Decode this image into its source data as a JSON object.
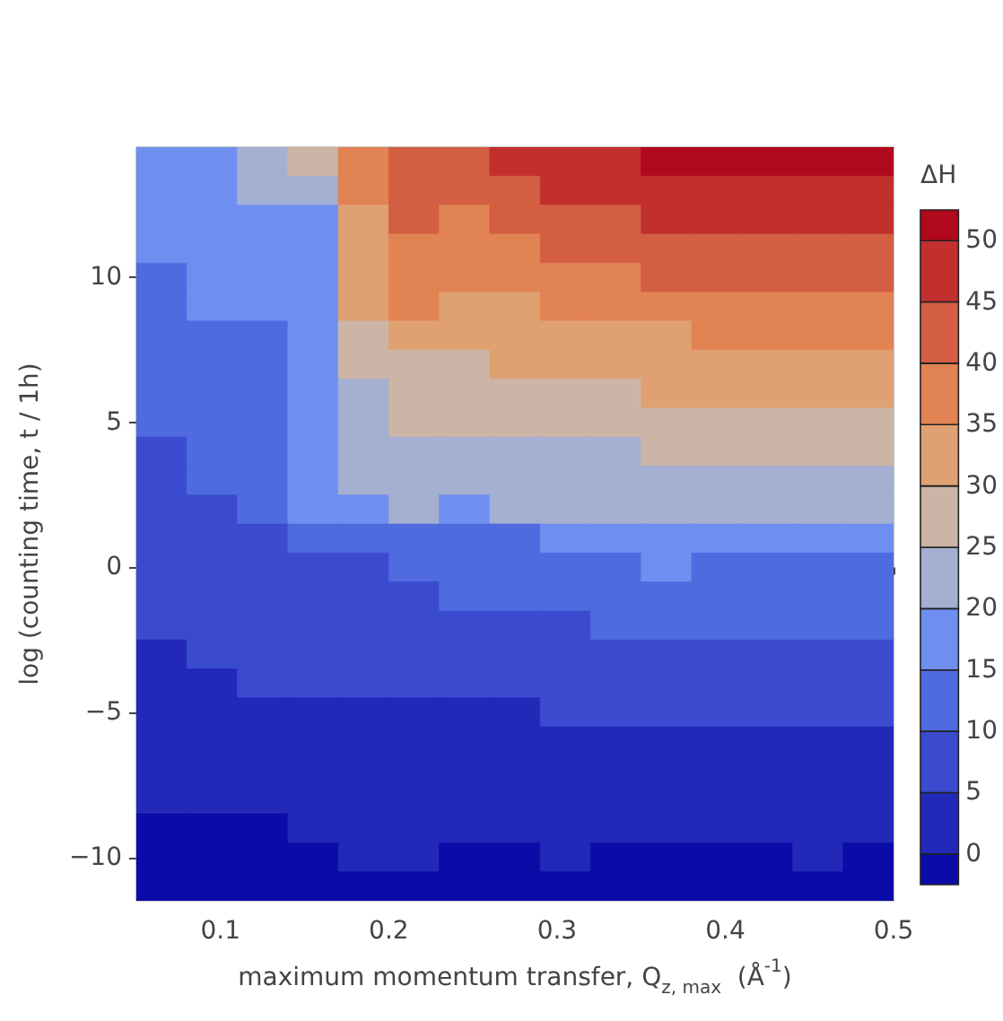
{
  "chart_data": {
    "type": "heatmap",
    "xlabel": "maximum momentum transfer, Q$_{z, max}$  (Å$^{-1}$)",
    "ylabel": "log (counting time, t / 1h)",
    "clabel": "ΔH",
    "xlim": [
      0.05,
      0.5
    ],
    "xticks": [
      0.1,
      0.2,
      0.3,
      0.4,
      0.5
    ],
    "ylim": [
      -11.5,
      14.5
    ],
    "yticks": [
      -10,
      -5,
      0,
      5,
      10
    ],
    "clim": [
      -2.5,
      52.5
    ],
    "cticks": [
      0,
      5,
      10,
      15,
      20,
      25,
      30,
      35,
      40,
      45,
      50
    ],
    "colors": [
      "#0b0ba8",
      "#2229b9",
      "#3a4bcf",
      "#506be0",
      "#6f8ff0",
      "#a4afd1",
      "#ccb5a6",
      "#dfa172",
      "#e28353",
      "#d35e42",
      "#c1302d",
      "#b0081c"
    ],
    "cells": [
      [
        17.5,
        17.5,
        22.5,
        27.5,
        37.5,
        42.5,
        42.5,
        47.5,
        47.5,
        47.5,
        51,
        51,
        51,
        51,
        51
      ],
      [
        17.5,
        17.5,
        22.5,
        22.5,
        37.5,
        42.5,
        42.5,
        42.5,
        47.5,
        47.5,
        47.5,
        47.5,
        47.5,
        47.5,
        47.5
      ],
      [
        17.5,
        17.5,
        17.5,
        17.5,
        32.5,
        42.5,
        37.5,
        42.5,
        42.5,
        42.5,
        47.5,
        47.5,
        47.5,
        47.5,
        47.5
      ],
      [
        17.5,
        17.5,
        17.5,
        17.5,
        32.5,
        37.5,
        37.5,
        37.5,
        42.5,
        42.5,
        42.5,
        42.5,
        42.5,
        42.5,
        42.5
      ],
      [
        12.5,
        17.5,
        17.5,
        17.5,
        32.5,
        37.5,
        37.5,
        37.5,
        37.5,
        37.5,
        42.5,
        42.5,
        42.5,
        42.5,
        42.5
      ],
      [
        12.5,
        17.5,
        17.5,
        17.5,
        32.5,
        37.5,
        32.5,
        32.5,
        37.5,
        37.5,
        37.5,
        37.5,
        37.5,
        37.5,
        37.5
      ],
      [
        12.5,
        12.5,
        12.5,
        17.5,
        27.5,
        32.5,
        32.5,
        32.5,
        32.5,
        32.5,
        32.5,
        37.5,
        37.5,
        37.5,
        37.5
      ],
      [
        12.5,
        12.5,
        12.5,
        17.5,
        27.5,
        27.5,
        27.5,
        32.5,
        32.5,
        32.5,
        32.5,
        32.5,
        32.5,
        32.5,
        32.5
      ],
      [
        12.5,
        12.5,
        12.5,
        17.5,
        22.5,
        27.5,
        27.5,
        27.5,
        27.5,
        27.5,
        32.5,
        32.5,
        32.5,
        32.5,
        32.5
      ],
      [
        12.5,
        12.5,
        12.5,
        17.5,
        22.5,
        27.5,
        27.5,
        27.5,
        27.5,
        27.5,
        27.5,
        27.5,
        27.5,
        27.5,
        27.5
      ],
      [
        7.5,
        12.5,
        12.5,
        17.5,
        22.5,
        22.5,
        22.5,
        22.5,
        22.5,
        22.5,
        27.5,
        27.5,
        27.5,
        27.5,
        27.5
      ],
      [
        7.5,
        12.5,
        12.5,
        17.5,
        22.5,
        22.5,
        22.5,
        22.5,
        22.5,
        22.5,
        22.5,
        22.5,
        22.5,
        22.5,
        22.5
      ],
      [
        7.5,
        7.5,
        12.5,
        17.5,
        17.5,
        22.5,
        17.5,
        22.5,
        22.5,
        22.5,
        22.5,
        22.5,
        22.5,
        22.5,
        22.5
      ],
      [
        7.5,
        7.5,
        7.5,
        12.5,
        12.5,
        12.5,
        12.5,
        12.5,
        17.5,
        17.5,
        17.5,
        17.5,
        17.5,
        17.5,
        17.5
      ],
      [
        7.5,
        7.5,
        7.5,
        7.5,
        7.5,
        12.5,
        12.5,
        12.5,
        12.5,
        12.5,
        17.5,
        12.5,
        12.5,
        12.5,
        12.5
      ],
      [
        7.5,
        7.5,
        7.5,
        7.5,
        7.5,
        7.5,
        12.5,
        12.5,
        12.5,
        12.5,
        12.5,
        12.5,
        12.5,
        12.5,
        12.5
      ],
      [
        7.5,
        7.5,
        7.5,
        7.5,
        7.5,
        7.5,
        7.5,
        7.5,
        7.5,
        12.5,
        12.5,
        12.5,
        12.5,
        12.5,
        12.5
      ],
      [
        2.5,
        7.5,
        7.5,
        7.5,
        7.5,
        7.5,
        7.5,
        7.5,
        7.5,
        7.5,
        7.5,
        7.5,
        7.5,
        7.5,
        7.5
      ],
      [
        2.5,
        2.5,
        7.5,
        7.5,
        7.5,
        7.5,
        7.5,
        7.5,
        7.5,
        7.5,
        7.5,
        7.5,
        7.5,
        7.5,
        7.5
      ],
      [
        2.5,
        2.5,
        2.5,
        2.5,
        2.5,
        2.5,
        2.5,
        2.5,
        7.5,
        7.5,
        7.5,
        7.5,
        7.5,
        7.5,
        7.5
      ],
      [
        2.5,
        2.5,
        2.5,
        2.5,
        2.5,
        2.5,
        2.5,
        2.5,
        2.5,
        2.5,
        2.5,
        2.5,
        2.5,
        2.5,
        2.5
      ],
      [
        2.5,
        2.5,
        2.5,
        2.5,
        2.5,
        2.5,
        2.5,
        2.5,
        2.5,
        2.5,
        2.5,
        2.5,
        2.5,
        2.5,
        2.5
      ],
      [
        2.5,
        2.5,
        2.5,
        2.5,
        2.5,
        2.5,
        2.5,
        2.5,
        2.5,
        2.5,
        2.5,
        2.5,
        2.5,
        2.5,
        2.5
      ],
      [
        -1,
        -1,
        -1,
        2.5,
        2.5,
        2.5,
        2.5,
        2.5,
        2.5,
        2.5,
        2.5,
        2.5,
        2.5,
        2.5,
        2.5
      ],
      [
        -1,
        -1,
        -1,
        -1,
        2.5,
        2.5,
        -1,
        -1,
        2.5,
        -1,
        -1,
        -1,
        -1,
        2.5,
        -1
      ],
      [
        -1,
        -1,
        -1,
        -1,
        -1,
        -1,
        -1,
        -1,
        -1,
        -1,
        -1,
        -1,
        -1,
        -1,
        -1
      ]
    ]
  }
}
